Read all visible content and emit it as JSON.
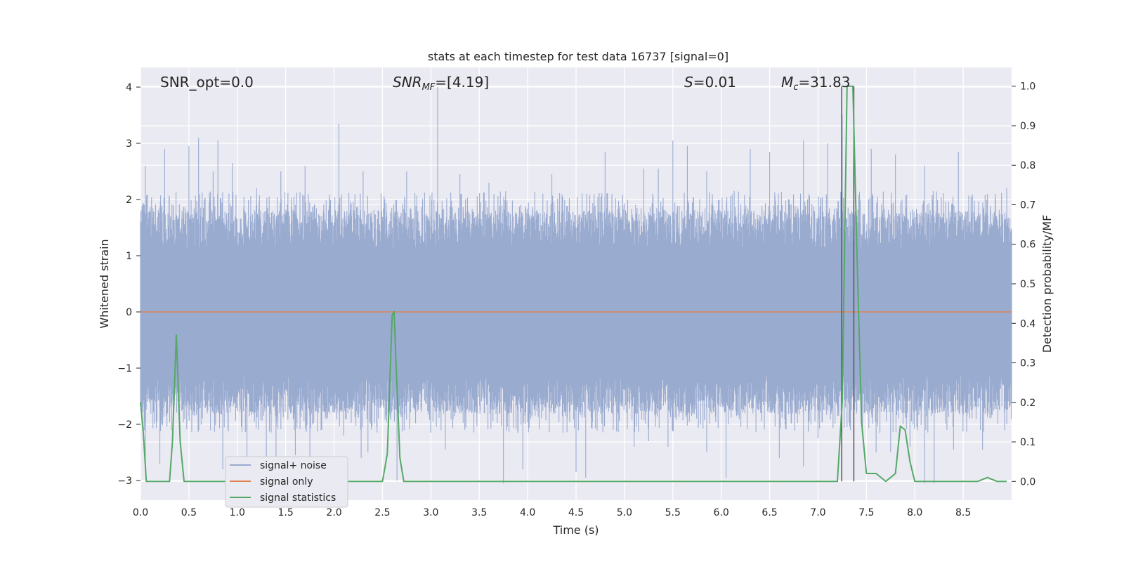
{
  "chart_data": {
    "type": "line",
    "title": "stats at each timestep for test data 16737 [signal=0]",
    "xlabel": "Time (s)",
    "ylabel": "Whitened strain",
    "y2label": "Detection probability/MF",
    "xlim": [
      0,
      9
    ],
    "ylim": [
      -3.35,
      4.35
    ],
    "y2lim": [
      -0.0475,
      1.0475
    ],
    "xticks": [
      "0.0",
      "0.5",
      "1.0",
      "1.5",
      "2.0",
      "2.5",
      "3.0",
      "3.5",
      "4.0",
      "4.5",
      "5.0",
      "5.5",
      "6.0",
      "6.5",
      "7.0",
      "7.5",
      "8.0",
      "8.5"
    ],
    "yticks": [
      "−3",
      "−2",
      "−1",
      "0",
      "1",
      "2",
      "3",
      "4"
    ],
    "y2ticks": [
      "0.0",
      "0.1",
      "0.2",
      "0.3",
      "0.4",
      "0.5",
      "0.6",
      "0.7",
      "0.8",
      "0.9",
      "1.0"
    ],
    "grid": true,
    "legend_position": "lower-left",
    "annotations": {
      "snr_opt": "SNR_opt=0.0",
      "snr_mf_var": "SNR",
      "snr_mf_sub": "MF",
      "snr_mf_val": "=[4.19]",
      "s_var": "S",
      "s_val": "=0.01",
      "mc_var": "M",
      "mc_sub": "c",
      "mc_val": "=31.83"
    },
    "vlines": [
      7.245,
      7.37
    ],
    "series": [
      {
        "name": "signal+ noise",
        "color": "#9aabd0",
        "envelope": {
          "core_low": -1.55,
          "core_high": 1.55,
          "peaks_high": [
            [
              0.05,
              2.6
            ],
            [
              0.25,
              2.9
            ],
            [
              0.5,
              2.95
            ],
            [
              0.6,
              3.1
            ],
            [
              0.75,
              2.5
            ],
            [
              0.8,
              3.05
            ],
            [
              0.95,
              2.65
            ],
            [
              1.2,
              2.2
            ],
            [
              1.45,
              2.5
            ],
            [
              1.7,
              2.6
            ],
            [
              2.05,
              3.35
            ],
            [
              2.3,
              2.5
            ],
            [
              2.75,
              2.5
            ],
            [
              3.07,
              4.0
            ],
            [
              3.3,
              2.45
            ],
            [
              3.6,
              2.3
            ],
            [
              4.25,
              2.45
            ],
            [
              4.8,
              2.85
            ],
            [
              5.2,
              2.55
            ],
            [
              5.35,
              2.55
            ],
            [
              5.5,
              3.05
            ],
            [
              5.65,
              2.95
            ],
            [
              5.85,
              2.5
            ],
            [
              6.3,
              2.9
            ],
            [
              6.5,
              2.85
            ],
            [
              6.85,
              3.05
            ],
            [
              7.1,
              3.0
            ],
            [
              7.25,
              3.5
            ],
            [
              7.55,
              2.9
            ],
            [
              7.8,
              2.8
            ],
            [
              8.1,
              2.6
            ],
            [
              8.45,
              2.85
            ],
            [
              8.75,
              2.1
            ],
            [
              8.95,
              2.2
            ]
          ],
          "peaks_low": [
            [
              0.05,
              -2.65
            ],
            [
              0.2,
              -2.7
            ],
            [
              0.5,
              -1.85
            ],
            [
              0.85,
              -2.8
            ],
            [
              1.1,
              -2.6
            ],
            [
              1.3,
              -2.6
            ],
            [
              1.4,
              -2.75
            ],
            [
              1.6,
              -2.55
            ],
            [
              1.75,
              -2.9
            ],
            [
              2.1,
              -2.2
            ],
            [
              2.28,
              -2.6
            ],
            [
              2.35,
              -2.5
            ],
            [
              2.65,
              -3.0
            ],
            [
              3.15,
              -2.45
            ],
            [
              3.75,
              -3.05
            ],
            [
              3.95,
              -2.8
            ],
            [
              4.5,
              -2.85
            ],
            [
              4.6,
              -2.95
            ],
            [
              5.1,
              -2.4
            ],
            [
              5.25,
              -2.3
            ],
            [
              5.45,
              -2.4
            ],
            [
              5.85,
              -2.5
            ],
            [
              6.05,
              -2.95
            ],
            [
              6.6,
              -2.6
            ],
            [
              6.85,
              -2.75
            ],
            [
              7.0,
              -2.25
            ],
            [
              7.3,
              -2.05
            ],
            [
              7.6,
              -2.5
            ],
            [
              7.75,
              -2.5
            ],
            [
              7.95,
              -2.4
            ],
            [
              8.1,
              -3.05
            ],
            [
              8.2,
              -3.05
            ],
            [
              8.4,
              -2.45
            ],
            [
              8.7,
              -2.45
            ],
            [
              8.95,
              -2.0
            ]
          ]
        }
      },
      {
        "name": "signal only",
        "color": "#dd8452",
        "x": [
          0,
          9
        ],
        "y": [
          0,
          0
        ]
      },
      {
        "name": "signal statistics",
        "color": "#55a868",
        "axis": "right",
        "x": [
          0.0,
          0.03,
          0.06,
          0.1,
          0.2,
          0.3,
          0.33,
          0.37,
          0.41,
          0.45,
          0.5,
          1.0,
          1.5,
          2.0,
          2.5,
          2.55,
          2.6,
          2.62,
          2.64,
          2.68,
          2.72,
          2.8,
          3.0,
          4.0,
          5.0,
          6.0,
          7.0,
          7.2,
          7.25,
          7.3,
          7.36,
          7.4,
          7.45,
          7.5,
          7.55,
          7.6,
          7.65,
          7.7,
          7.8,
          7.85,
          7.9,
          7.95,
          8.0,
          8.05,
          8.1,
          8.5,
          8.65,
          8.75,
          8.85,
          8.95
        ],
        "y": [
          0.2,
          0.12,
          0.0,
          0.0,
          0.0,
          0.0,
          0.1,
          0.37,
          0.1,
          0.0,
          0.0,
          0.0,
          0.0,
          0.0,
          0.0,
          0.07,
          0.42,
          0.43,
          0.3,
          0.06,
          0.0,
          0.0,
          0.0,
          0.0,
          0.0,
          0.0,
          0.0,
          0.0,
          0.2,
          1.0,
          1.0,
          0.6,
          0.15,
          0.02,
          0.02,
          0.02,
          0.01,
          0.0,
          0.02,
          0.14,
          0.13,
          0.05,
          0.0,
          0.0,
          0.0,
          0.0,
          0.0,
          0.01,
          0.0,
          0.0
        ]
      }
    ]
  }
}
